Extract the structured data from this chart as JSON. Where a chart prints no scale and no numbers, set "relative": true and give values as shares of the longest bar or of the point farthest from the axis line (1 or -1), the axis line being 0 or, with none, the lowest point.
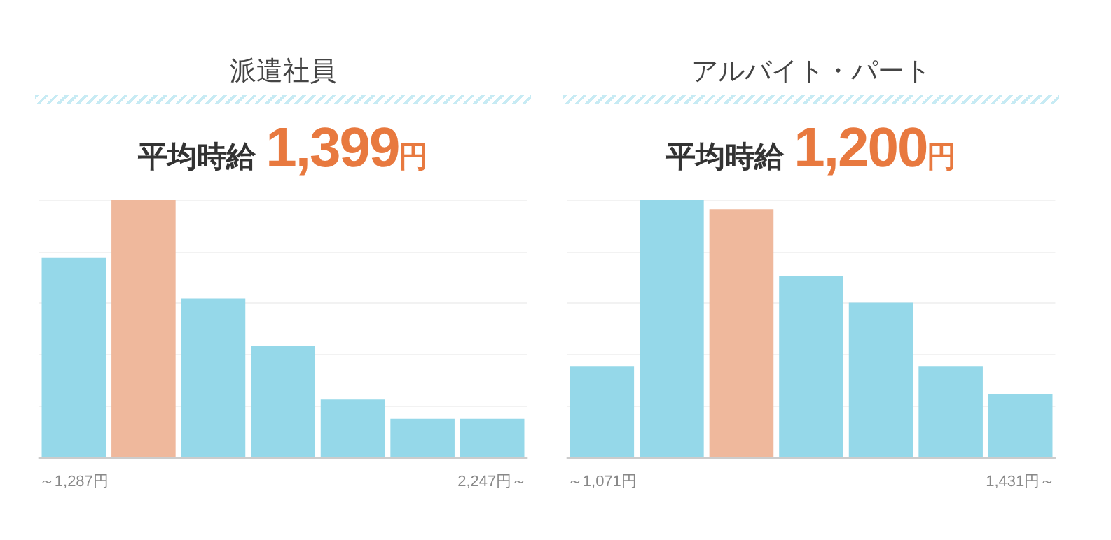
{
  "chart_data": [
    {
      "type": "bar",
      "title": "派遣社員",
      "subtitle": "平均時給 1,399円",
      "relative": true,
      "grid": "y",
      "categories": [
        "～1,287円",
        null,
        null,
        null,
        null,
        null,
        "2,247円～"
      ],
      "values": [
        0.775,
        1,
        0.618,
        0.434,
        0.225,
        0.15,
        0.15
      ],
      "colors": [
        "#95d8e9",
        "#efb89c",
        "#95d8e9",
        "#95d8e9",
        "#95d8e9",
        "#95d8e9",
        "#95d8e9"
      ]
    },
    {
      "type": "bar",
      "title": "アルバイト・パート",
      "subtitle": "平均時給 1,200円",
      "relative": true,
      "grid": "y",
      "categories": [
        "～1,071円",
        null,
        null,
        null,
        null,
        null,
        "1,431円～"
      ],
      "values": [
        0.355,
        1,
        0.964,
        0.705,
        0.602,
        0.355,
        0.247
      ],
      "colors": [
        "#95d8e9",
        "#95d8e9",
        "#efb89c",
        "#95d8e9",
        "#95d8e9",
        "#95d8e9",
        "#95d8e9"
      ]
    }
  ]
}
